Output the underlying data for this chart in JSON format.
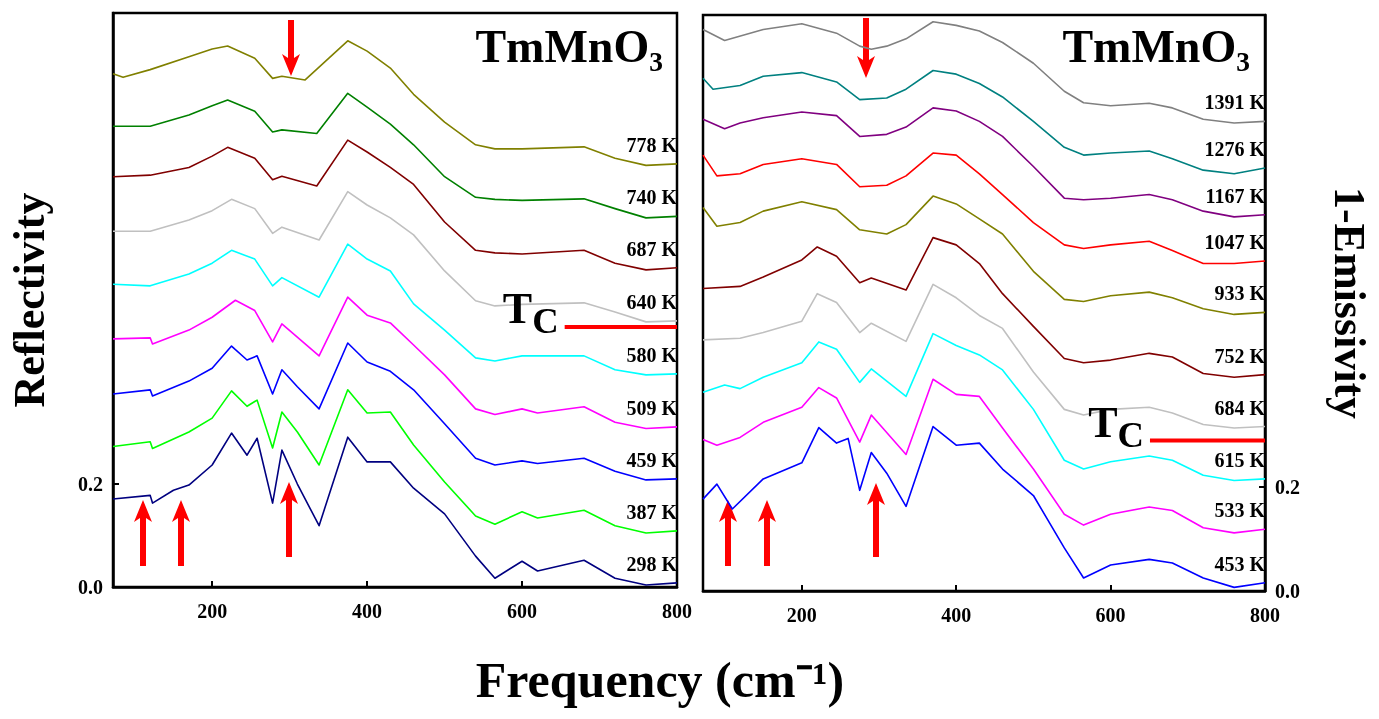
{
  "chart_data": [
    {
      "type": "line",
      "title": "TmMnO₃",
      "xlabel": "Frequency (cm⁻¹)",
      "ylabel": "Reflectivity",
      "xlim": [
        72,
        800
      ],
      "xticks": [
        200,
        400,
        600,
        800
      ],
      "ylim": [
        0,
        1.115
      ],
      "yticks": [
        {
          "value": 0,
          "label": "0.0"
        },
        {
          "value": 0.2,
          "label": "0.2"
        }
      ],
      "series": [
        {
          "name": "778 K",
          "color": "#808000",
          "x": [
            72,
            85,
            120,
            170,
            200,
            220,
            255,
            278,
            290,
            320,
            375,
            400,
            430,
            460,
            500,
            540,
            565,
            600,
            680,
            720,
            760,
            800
          ],
          "values": [
            0.997,
            0.99,
            1.005,
            1.03,
            1.045,
            1.051,
            1.027,
            0.988,
            0.992,
            0.985,
            1.061,
            1.041,
            1.008,
            0.957,
            0.903,
            0.859,
            0.851,
            0.851,
            0.855,
            0.833,
            0.819,
            0.822
          ]
        },
        {
          "name": "740 K",
          "color": "#008000",
          "x": [
            72,
            120,
            170,
            200,
            220,
            255,
            278,
            290,
            335,
            375,
            400,
            430,
            460,
            500,
            540,
            565,
            600,
            680,
            720,
            760,
            800
          ],
          "values": [
            0.895,
            0.895,
            0.917,
            0.935,
            0.946,
            0.924,
            0.884,
            0.888,
            0.881,
            0.959,
            0.932,
            0.899,
            0.859,
            0.797,
            0.757,
            0.753,
            0.751,
            0.754,
            0.735,
            0.717,
            0.72
          ]
        },
        {
          "name": "687 K",
          "color": "#800000",
          "x": [
            72,
            120,
            170,
            200,
            220,
            255,
            278,
            290,
            335,
            375,
            400,
            430,
            460,
            500,
            540,
            565,
            600,
            680,
            720,
            760,
            800
          ],
          "values": [
            0.797,
            0.8,
            0.815,
            0.837,
            0.854,
            0.833,
            0.791,
            0.798,
            0.779,
            0.868,
            0.845,
            0.815,
            0.782,
            0.709,
            0.654,
            0.649,
            0.647,
            0.654,
            0.629,
            0.616,
            0.62
          ]
        },
        {
          "name": "640 K",
          "color": "#c0c0c0",
          "x": [
            72,
            120,
            170,
            200,
            225,
            255,
            278,
            290,
            338,
            375,
            400,
            430,
            460,
            500,
            540,
            565,
            600,
            680,
            720,
            760,
            800
          ],
          "values": [
            0.691,
            0.691,
            0.713,
            0.731,
            0.753,
            0.735,
            0.687,
            0.699,
            0.674,
            0.768,
            0.742,
            0.717,
            0.684,
            0.614,
            0.556,
            0.546,
            0.549,
            0.552,
            0.534,
            0.515,
            0.517
          ]
        },
        {
          "name": "580 K",
          "color": "#00ffff",
          "x": [
            72,
            120,
            170,
            200,
            225,
            255,
            278,
            290,
            338,
            375,
            400,
            430,
            460,
            500,
            540,
            565,
            600,
            680,
            720,
            760,
            800
          ],
          "values": [
            0.588,
            0.585,
            0.608,
            0.629,
            0.654,
            0.637,
            0.585,
            0.601,
            0.563,
            0.666,
            0.637,
            0.614,
            0.55,
            0.499,
            0.445,
            0.439,
            0.449,
            0.449,
            0.422,
            0.412,
            0.414
          ]
        },
        {
          "name": "509 K",
          "color": "#ff00ff",
          "x": [
            72,
            120,
            123,
            170,
            200,
            230,
            255,
            278,
            290,
            338,
            375,
            400,
            430,
            460,
            500,
            540,
            565,
            600,
            620,
            680,
            720,
            760,
            800
          ],
          "values": [
            0.482,
            0.484,
            0.472,
            0.499,
            0.524,
            0.557,
            0.537,
            0.476,
            0.511,
            0.449,
            0.563,
            0.528,
            0.513,
            0.47,
            0.412,
            0.346,
            0.335,
            0.346,
            0.338,
            0.35,
            0.32,
            0.308,
            0.311
          ]
        },
        {
          "name": "459 K",
          "color": "#0000ff",
          "x": [
            72,
            120,
            123,
            170,
            200,
            225,
            245,
            258,
            278,
            290,
            310,
            338,
            375,
            400,
            430,
            460,
            500,
            540,
            565,
            600,
            620,
            680,
            720,
            760,
            800
          ],
          "values": [
            0.375,
            0.383,
            0.371,
            0.4,
            0.425,
            0.468,
            0.441,
            0.449,
            0.375,
            0.422,
            0.389,
            0.346,
            0.474,
            0.437,
            0.419,
            0.383,
            0.317,
            0.25,
            0.237,
            0.245,
            0.24,
            0.25,
            0.225,
            0.208,
            0.21
          ]
        },
        {
          "name": "387 K",
          "color": "#00ff00",
          "x": [
            72,
            120,
            123,
            170,
            200,
            225,
            245,
            258,
            278,
            290,
            310,
            338,
            375,
            400,
            430,
            460,
            500,
            540,
            565,
            600,
            620,
            680,
            720,
            760,
            800
          ],
          "values": [
            0.273,
            0.282,
            0.269,
            0.301,
            0.328,
            0.381,
            0.351,
            0.363,
            0.27,
            0.34,
            0.301,
            0.237,
            0.383,
            0.338,
            0.34,
            0.276,
            0.204,
            0.138,
            0.122,
            0.146,
            0.134,
            0.149,
            0.119,
            0.105,
            0.109
          ]
        },
        {
          "name": "298 K",
          "color": "#000080",
          "x": [
            72,
            120,
            123,
            150,
            170,
            200,
            225,
            245,
            258,
            278,
            290,
            310,
            338,
            375,
            400,
            430,
            460,
            500,
            540,
            565,
            600,
            620,
            680,
            720,
            760,
            800
          ],
          "values": [
            0.171,
            0.178,
            0.163,
            0.188,
            0.198,
            0.237,
            0.299,
            0.256,
            0.289,
            0.163,
            0.266,
            0.2,
            0.119,
            0.291,
            0.243,
            0.243,
            0.192,
            0.142,
            0.06,
            0.017,
            0.05,
            0.031,
            0.052,
            0.017,
            0.004,
            0.008
          ]
        },
        {
          "name": "T$_{C}$",
          "color": "#ff0000",
          "x": [
            655,
            800
          ],
          "values": [
            0.505,
            0.505
          ]
        }
      ]
    },
    {
      "type": "line",
      "title": "TmMnO₃",
      "y2label": "1-Emissivity",
      "xlim": [
        72,
        800
      ],
      "xticks": [
        200,
        400,
        600,
        800
      ],
      "y2lim": [
        0,
        1.11
      ],
      "y2ticks": [
        {
          "value": 0,
          "label": "0.0"
        },
        {
          "value": 0.2,
          "label": "0.2"
        }
      ],
      "series": [
        {
          "name": "1391 K",
          "color": "#808080",
          "axis": "y2",
          "x": [
            72,
            100,
            150,
            200,
            245,
            275,
            290,
            310,
            335,
            370,
            400,
            430,
            460,
            500,
            540,
            565,
            600,
            650,
            680,
            720,
            760,
            800
          ],
          "values": [
            1.082,
            1.061,
            1.082,
            1.093,
            1.075,
            1.05,
            1.044,
            1.05,
            1.064,
            1.097,
            1.09,
            1.079,
            1.057,
            1.017,
            0.963,
            0.941,
            0.935,
            0.94,
            0.931,
            0.909,
            0.902,
            0.905
          ]
        },
        {
          "name": "1276 K",
          "color": "#008080",
          "axis": "y2",
          "x": [
            72,
            85,
            120,
            150,
            200,
            245,
            275,
            310,
            335,
            370,
            400,
            430,
            460,
            500,
            540,
            565,
            600,
            650,
            680,
            720,
            760,
            800
          ],
          "values": [
            0.988,
            0.967,
            0.974,
            0.992,
            0.999,
            0.981,
            0.947,
            0.95,
            0.967,
            1.003,
            0.996,
            0.978,
            0.952,
            0.905,
            0.855,
            0.84,
            0.844,
            0.848,
            0.833,
            0.811,
            0.804,
            0.815
          ]
        },
        {
          "name": "1167 K",
          "color": "#800080",
          "axis": "y2",
          "x": [
            72,
            100,
            120,
            150,
            200,
            245,
            275,
            310,
            335,
            370,
            400,
            430,
            460,
            500,
            540,
            565,
            600,
            650,
            680,
            720,
            760,
            800
          ],
          "values": [
            0.909,
            0.891,
            0.902,
            0.912,
            0.923,
            0.916,
            0.876,
            0.88,
            0.894,
            0.931,
            0.925,
            0.905,
            0.876,
            0.818,
            0.757,
            0.754,
            0.757,
            0.764,
            0.754,
            0.732,
            0.721,
            0.725
          ]
        },
        {
          "name": "1047 K",
          "color": "#ff0000",
          "axis": "y2",
          "x": [
            72,
            90,
            120,
            150,
            200,
            245,
            275,
            310,
            335,
            370,
            400,
            430,
            460,
            500,
            540,
            565,
            600,
            650,
            680,
            720,
            760,
            800
          ],
          "values": [
            0.84,
            0.8,
            0.804,
            0.822,
            0.833,
            0.822,
            0.779,
            0.782,
            0.8,
            0.844,
            0.84,
            0.804,
            0.764,
            0.71,
            0.667,
            0.66,
            0.667,
            0.674,
            0.656,
            0.631,
            0.631,
            0.636
          ]
        },
        {
          "name": "933 K",
          "color": "#808000",
          "axis": "y2",
          "x": [
            72,
            90,
            120,
            150,
            200,
            245,
            275,
            310,
            335,
            370,
            400,
            430,
            460,
            500,
            540,
            565,
            600,
            650,
            680,
            720,
            760,
            800
          ],
          "values": [
            0.739,
            0.703,
            0.71,
            0.732,
            0.75,
            0.735,
            0.696,
            0.688,
            0.706,
            0.761,
            0.746,
            0.717,
            0.688,
            0.616,
            0.562,
            0.558,
            0.569,
            0.576,
            0.565,
            0.544,
            0.533,
            0.537
          ]
        },
        {
          "name": "752 K",
          "color": "#800000",
          "axis": "y2",
          "x": [
            72,
            120,
            150,
            200,
            220,
            245,
            275,
            290,
            335,
            370,
            400,
            430,
            460,
            500,
            540,
            565,
            600,
            650,
            680,
            720,
            760,
            800
          ],
          "values": [
            0.583,
            0.587,
            0.605,
            0.638,
            0.663,
            0.645,
            0.594,
            0.603,
            0.58,
            0.681,
            0.667,
            0.631,
            0.573,
            0.51,
            0.448,
            0.44,
            0.445,
            0.458,
            0.451,
            0.419,
            0.412,
            0.417
          ]
        },
        {
          "name": "684 K",
          "color": "#c0c0c0",
          "axis": "y2",
          "x": [
            72,
            120,
            150,
            200,
            220,
            245,
            275,
            290,
            335,
            370,
            400,
            430,
            460,
            500,
            540,
            565,
            600,
            650,
            680,
            720,
            760,
            800
          ],
          "values": [
            0.484,
            0.487,
            0.498,
            0.52,
            0.573,
            0.556,
            0.498,
            0.516,
            0.481,
            0.591,
            0.565,
            0.531,
            0.506,
            0.422,
            0.35,
            0.339,
            0.35,
            0.354,
            0.343,
            0.321,
            0.314,
            0.317
          ]
        },
        {
          "name": "615 K",
          "color": "#00ffff",
          "axis": "y2",
          "x": [
            72,
            100,
            120,
            150,
            200,
            222,
            245,
            275,
            290,
            335,
            370,
            400,
            430,
            460,
            500,
            540,
            565,
            600,
            650,
            680,
            720,
            760,
            800
          ],
          "values": [
            0.383,
            0.397,
            0.39,
            0.412,
            0.44,
            0.48,
            0.466,
            0.402,
            0.428,
            0.375,
            0.496,
            0.473,
            0.455,
            0.426,
            0.35,
            0.252,
            0.235,
            0.249,
            0.26,
            0.252,
            0.223,
            0.213,
            0.216
          ]
        },
        {
          "name": "533 K",
          "color": "#ff00ff",
          "axis": "y2",
          "x": [
            72,
            90,
            120,
            150,
            200,
            222,
            245,
            275,
            290,
            335,
            370,
            400,
            430,
            460,
            500,
            540,
            565,
            600,
            650,
            680,
            720,
            760,
            800
          ],
          "values": [
            0.292,
            0.281,
            0.296,
            0.325,
            0.354,
            0.392,
            0.372,
            0.287,
            0.339,
            0.263,
            0.408,
            0.379,
            0.375,
            0.314,
            0.235,
            0.148,
            0.127,
            0.148,
            0.162,
            0.155,
            0.122,
            0.112,
            0.119
          ]
        },
        {
          "name": "453 K",
          "color": "#0000ff",
          "axis": "y2",
          "x": [
            72,
            90,
            110,
            150,
            200,
            222,
            245,
            260,
            275,
            290,
            310,
            335,
            370,
            400,
            430,
            460,
            500,
            540,
            565,
            600,
            650,
            680,
            720,
            760,
            800
          ],
          "values": [
            0.177,
            0.206,
            0.158,
            0.216,
            0.247,
            0.315,
            0.285,
            0.294,
            0.194,
            0.267,
            0.227,
            0.163,
            0.317,
            0.281,
            0.285,
            0.235,
            0.184,
            0.083,
            0.025,
            0.05,
            0.061,
            0.054,
            0.025,
            0.007,
            0.016
          ]
        },
        {
          "name": "T$_{C}$",
          "color": "#ff0000",
          "axis": "y2",
          "x": [
            651,
            800
          ],
          "values": [
            0.29,
            0.29
          ]
        }
      ]
    }
  ]
}
